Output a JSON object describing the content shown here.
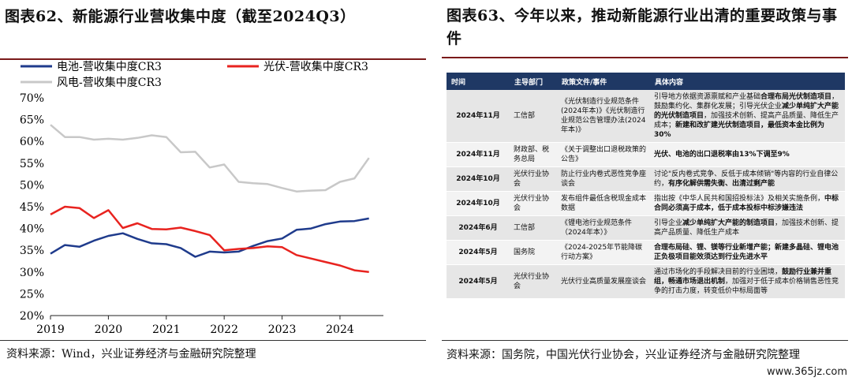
{
  "left": {
    "title": "图表62、新能源行业营收集中度（截至2024Q3）",
    "source": "资料来源：Wind，兴业证券经济与金融研究院整理"
  },
  "right": {
    "title": "图表63、今年以来，推动新能源行业出清的重要政策与事件",
    "source": "资料来源：国务院，中国光伏行业协会，兴业证券经济与金融研究院整理",
    "table": {
      "headers": [
        "时间",
        "主导部门",
        "政策文件/事件",
        "具体内容"
      ],
      "rows": [
        {
          "time": "2024年11月",
          "dept": "工信部",
          "doc": "《光伏制造行业规范条件(2024年本)》《光伏制造行业规范公告管理办法(2024年本)》",
          "content": [
            {
              "t": "引导地方依据资源禀赋和产业基础",
              "b": false
            },
            {
              "t": "合理布局光伏制造项目",
              "b": true
            },
            {
              "t": "，鼓励集约化、集群化发展；引导光伏企业",
              "b": false
            },
            {
              "t": "减少单纯扩大产能的光伏制造项目",
              "b": true
            },
            {
              "t": "，加强技术创新、提高产品质量、降低生产成本；",
              "b": false
            },
            {
              "t": "新建和改扩建光伏制造项目，最低资本金比例为30%",
              "b": true
            }
          ]
        },
        {
          "time": "2024年11月",
          "dept": "财政部、税务总局",
          "doc": "《关于调整出口退税政策的公告》",
          "content": [
            {
              "t": "光伏、电池的出口退税率由13%下调至9%",
              "b": true
            }
          ]
        },
        {
          "time": "2024年10月",
          "dept": "光伏行业协会",
          "doc": "防止行业内卷式恶性竞争座谈会",
          "content": [
            {
              "t": "讨论\"反内卷式竞争、反低于成本倾销\"等内容的行业自律公约，",
              "b": false
            },
            {
              "t": "有序化解供需失衡、出清过剩产能",
              "b": true
            }
          ]
        },
        {
          "time": "2024年10月",
          "dept": "光伏行业协会",
          "doc": "发布组件最低含税现金成本数据",
          "content": [
            {
              "t": "指出按《中华人民共和国招投标法》及相关实施条例，",
              "b": false
            },
            {
              "t": "中标合同必须高于成本，低于成本投标中标涉嫌违法",
              "b": true
            }
          ]
        },
        {
          "time": "2024年6月",
          "dept": "工信部",
          "doc": "《锂电池行业规范条件（2024年本）》",
          "content": [
            {
              "t": "引导企业",
              "b": false
            },
            {
              "t": "减少单纯扩大产能的制造项目",
              "b": true
            },
            {
              "t": "，加强技术创新、提高产品质量、降低生产成本",
              "b": false
            }
          ]
        },
        {
          "time": "2024年5月",
          "dept": "国务院",
          "doc": "《2024-2025年节能降碳行动方案》",
          "content": [
            {
              "t": "合理布局硅、锂、镁等行业新增产能；新建多晶硅、锂电池正负极项目能效须达到行业先进水平",
              "b": true
            }
          ]
        },
        {
          "time": "2024年5月",
          "dept": "光伏行业协会",
          "doc": "光伏行业高质量发展座谈会",
          "content": [
            {
              "t": "通过市场化的手段解决目前的行业困境，",
              "b": false
            },
            {
              "t": "鼓励行业兼并重组，畅通市场退出机制",
              "b": true
            },
            {
              "t": "，加强对于低于成本价格销售恶性竞争的打击力度，转变低价中标局面等",
              "b": false
            }
          ]
        }
      ]
    }
  },
  "watermark": "www.365jz.com",
  "chart_data": {
    "type": "line",
    "title": "",
    "xlabel": "",
    "ylabel": "",
    "ylim": [
      20,
      70
    ],
    "yticks": [
      "20%",
      "25%",
      "30%",
      "35%",
      "40%",
      "45%",
      "50%",
      "55%",
      "60%",
      "65%",
      "70%"
    ],
    "xticks": [
      "2019",
      "2020",
      "2021",
      "2022",
      "2023",
      "2024"
    ],
    "xlim": [
      2019.0,
      2024.75
    ],
    "x": [
      2019.0,
      2019.25,
      2019.5,
      2019.75,
      2020.0,
      2020.25,
      2020.5,
      2020.75,
      2021.0,
      2021.25,
      2021.5,
      2021.75,
      2022.0,
      2022.25,
      2022.5,
      2022.75,
      2023.0,
      2023.25,
      2023.5,
      2023.75,
      2024.0,
      2024.25,
      2024.5,
      2024.75
    ],
    "series": [
      {
        "name": "电池-营收集中度CR3",
        "color": "#1f3b8c",
        "values": [
          34.2,
          36.2,
          35.8,
          37.2,
          38.3,
          38.9,
          37.6,
          36.6,
          36.4,
          35.5,
          33.5,
          34.7,
          34.5,
          34.7,
          36.0,
          37.1,
          37.7,
          39.7,
          40.0,
          41.0,
          41.6,
          41.7,
          42.3,
          null
        ]
      },
      {
        "name": "光伏-营收集中度CR3",
        "color": "#e8231f",
        "values": [
          43.2,
          45.0,
          44.7,
          42.4,
          44.2,
          40.1,
          41.2,
          39.9,
          39.8,
          40.2,
          39.4,
          38.5,
          35.0,
          35.3,
          35.5,
          35.9,
          35.7,
          33.9,
          33.1,
          32.3,
          31.5,
          30.4,
          30.0,
          null
        ]
      },
      {
        "name": "风电-营收集中度CR3",
        "color": "#c8c8c8",
        "values": [
          63.8,
          61.0,
          61.0,
          60.4,
          60.6,
          60.4,
          60.8,
          61.4,
          61.0,
          57.5,
          57.6,
          54.0,
          54.7,
          50.7,
          50.4,
          50.2,
          49.3,
          48.5,
          48.7,
          48.8,
          50.7,
          51.5,
          56.2,
          null
        ]
      }
    ]
  }
}
